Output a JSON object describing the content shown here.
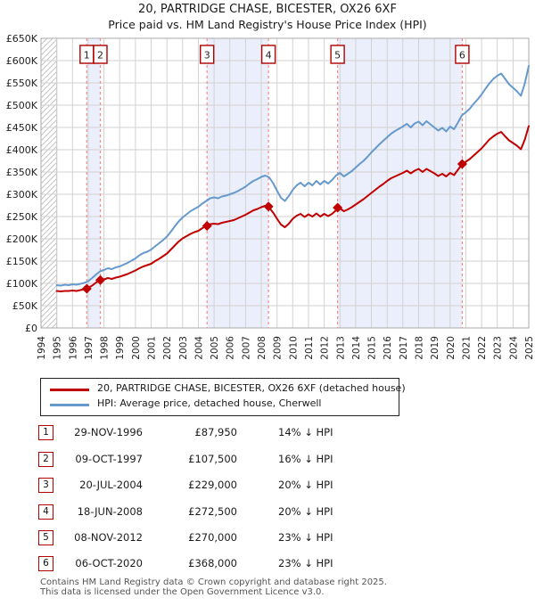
{
  "page": {
    "title": "20, PARTRIDGE CHASE, BICESTER, OX26 6XF",
    "subtitle": "Price paid vs. HM Land Registry's House Price Index (HPI)",
    "footer_line1": "Contains HM Land Registry data © Crown copyright and database right 2025.",
    "footer_line2": "This data is licensed under the Open Government Licence v3.0."
  },
  "legend": {
    "items": [
      {
        "label": "20, PARTRIDGE CHASE, BICESTER, OX26 6XF (detached house)",
        "color": "#c00000"
      },
      {
        "label": "HPI: Average price, detached house, Cherwell",
        "color": "#6699cc"
      }
    ]
  },
  "colors": {
    "property_line": "#c00000",
    "hpi_line": "#6699cc",
    "sale_dash": "#f28a8a",
    "ownership_band": "#eaeffb",
    "grid": "#d2d2d2",
    "plot_border": "#aaaaaa",
    "hatch_line": "#c4c4c4",
    "hatch_edge": "#888888",
    "sale_box_border": "#b00000",
    "footer_text": "#555555"
  },
  "chart_data": {
    "type": "line",
    "title": "20, PARTRIDGE CHASE, BICESTER, OX26 6XF — Price paid vs. HPI",
    "xlim": [
      1994,
      2025
    ],
    "xticks": [
      1994,
      1995,
      1996,
      1997,
      1998,
      1999,
      2000,
      2001,
      2002,
      2003,
      2004,
      2005,
      2006,
      2007,
      2008,
      2009,
      2010,
      2011,
      2012,
      2013,
      2014,
      2015,
      2016,
      2017,
      2018,
      2019,
      2020,
      2021,
      2022,
      2023,
      2024,
      2025
    ],
    "ylim_k": [
      0,
      650
    ],
    "ytick_step_k": 50,
    "y_unit": "GBP thousands",
    "grid": true,
    "legend_position": "below",
    "hatch_until_year": 1995,
    "x_start": 1995.0,
    "x_step": 0.25,
    "series": [
      {
        "name": "HPI: Average price, detached house, Cherwell",
        "color": "#6699cc",
        "values_k": [
          96,
          95,
          97,
          96,
          98,
          97,
          99,
          101,
          105,
          112,
          120,
          127,
          130,
          134,
          132,
          136,
          138,
          142,
          146,
          151,
          156,
          163,
          168,
          171,
          176,
          183,
          190,
          197,
          205,
          216,
          228,
          239,
          248,
          255,
          262,
          267,
          272,
          279,
          285,
          291,
          293,
          291,
          295,
          297,
          300,
          303,
          307,
          312,
          317,
          324,
          330,
          334,
          339,
          342,
          338,
          325,
          308,
          292,
          285,
          296,
          310,
          320,
          326,
          318,
          326,
          320,
          330,
          322,
          330,
          324,
          332,
          342,
          348,
          340,
          346,
          352,
          360,
          368,
          375,
          384,
          394,
          403,
          412,
          420,
          428,
          436,
          442,
          447,
          452,
          458,
          450,
          459,
          463,
          455,
          464,
          457,
          450,
          443,
          449,
          441,
          452,
          446,
          461,
          477,
          484,
          492,
          503,
          513,
          524,
          537,
          549,
          559,
          566,
          571,
          559,
          547,
          539,
          531,
          521,
          549,
          588
        ]
      },
      {
        "name": "20, PARTRIDGE CHASE, BICESTER, OX26 6XF (detached house)",
        "color": "#c00000",
        "values_k": [
          83,
          82,
          83,
          83,
          84,
          83,
          85,
          87,
          90,
          95,
          102,
          107,
          109,
          112,
          110,
          113,
          115,
          118,
          121,
          125,
          129,
          134,
          138,
          141,
          144,
          150,
          155,
          161,
          167,
          176,
          185,
          194,
          201,
          206,
          211,
          215,
          218,
          224,
          228,
          233,
          234,
          233,
          236,
          238,
          240,
          242,
          246,
          250,
          254,
          259,
          264,
          267,
          271,
          274,
          270,
          259,
          245,
          232,
          226,
          234,
          245,
          252,
          256,
          249,
          255,
          250,
          257,
          250,
          256,
          251,
          256,
          264,
          268,
          262,
          266,
          271,
          277,
          283,
          289,
          296,
          303,
          310,
          317,
          323,
          330,
          336,
          340,
          344,
          348,
          353,
          347,
          353,
          357,
          350,
          357,
          352,
          347,
          341,
          346,
          340,
          348,
          343,
          355,
          367,
          373,
          379,
          387,
          395,
          403,
          413,
          423,
          430,
          436,
          440,
          430,
          421,
          415,
          409,
          401,
          423,
          453
        ]
      }
    ],
    "sales": [
      {
        "num": "1",
        "date": "29-NOV-1996",
        "year": 1996.91,
        "price_k": 87.95,
        "price_label": "£87,950",
        "vs_hpi": "14% ↓ HPI"
      },
      {
        "num": "2",
        "date": "09-OCT-1997",
        "year": 1997.77,
        "price_k": 107.5,
        "price_label": "£107,500",
        "vs_hpi": "16% ↓ HPI"
      },
      {
        "num": "3",
        "date": "20-JUL-2004",
        "year": 2004.55,
        "price_k": 229,
        "price_label": "£229,000",
        "vs_hpi": "20% ↓ HPI"
      },
      {
        "num": "4",
        "date": "18-JUN-2008",
        "year": 2008.46,
        "price_k": 272.5,
        "price_label": "£272,500",
        "vs_hpi": "20% ↓ HPI"
      },
      {
        "num": "5",
        "date": "08-NOV-2012",
        "year": 2012.85,
        "price_k": 270,
        "price_label": "£270,000",
        "vs_hpi": "23% ↓ HPI"
      },
      {
        "num": "6",
        "date": "06-OCT-2020",
        "year": 2020.77,
        "price_k": 368,
        "price_label": "£368,000",
        "vs_hpi": "23% ↓ HPI"
      }
    ],
    "owned_bands": [
      [
        1996.91,
        1997.77
      ],
      [
        2004.55,
        2008.46
      ],
      [
        2012.85,
        2020.77
      ]
    ]
  }
}
